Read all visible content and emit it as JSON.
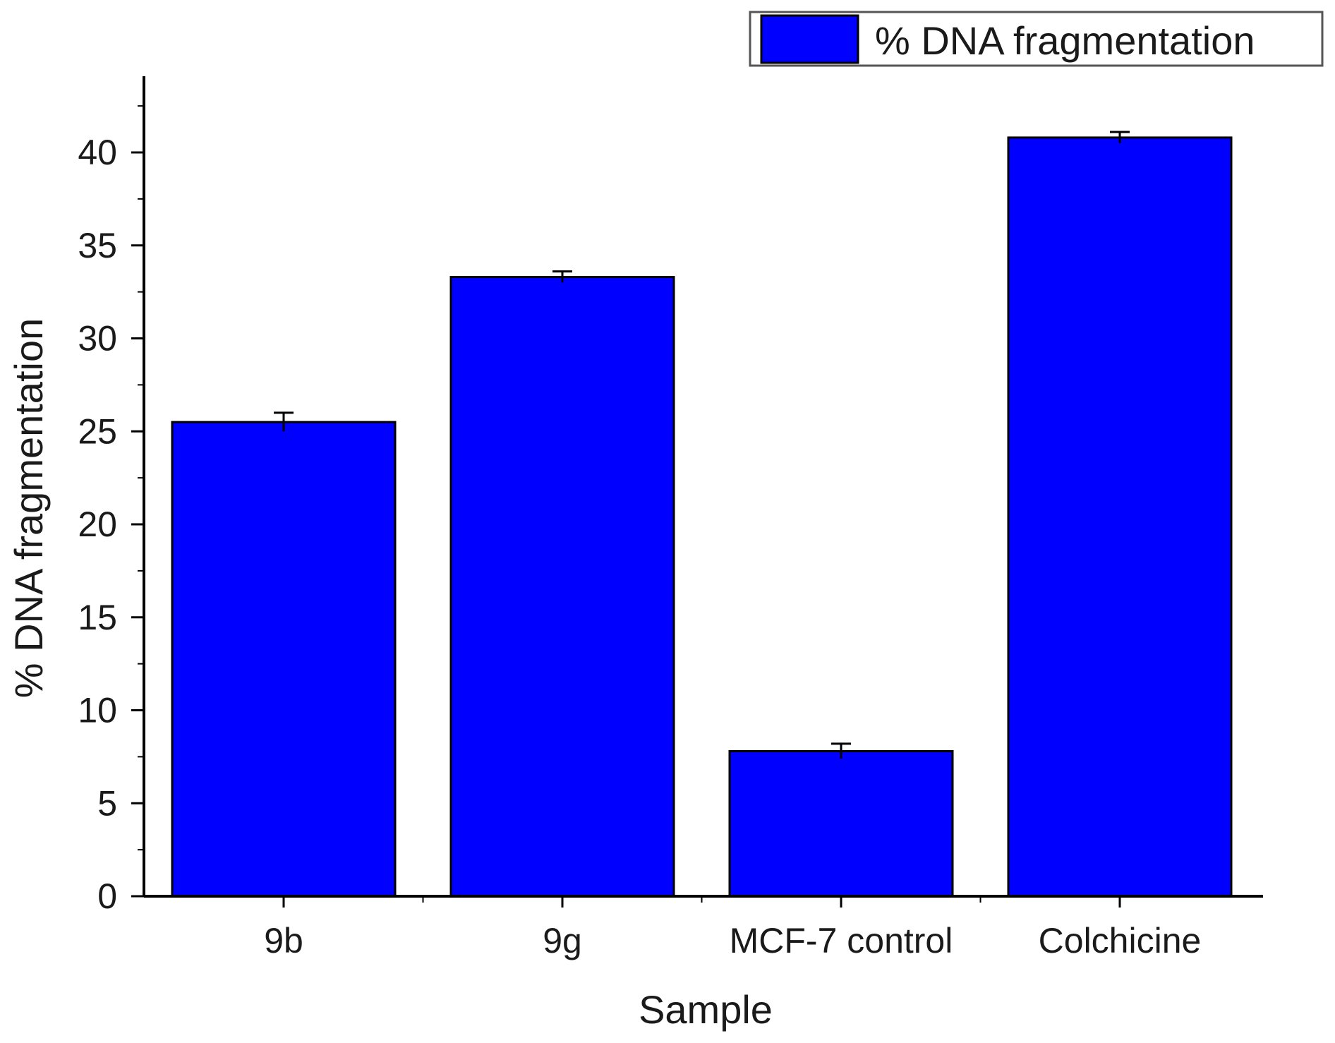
{
  "chart_data": {
    "type": "bar",
    "title": "",
    "xlabel": "Sample",
    "ylabel": "% DNA fragmentation",
    "categories": [
      "9b",
      "9g",
      "MCF-7 control",
      "Colchicine"
    ],
    "series": [
      {
        "name": "% DNA fragmentation",
        "values": [
          25.5,
          33.3,
          7.8,
          40.8
        ],
        "errors": [
          0.5,
          0.3,
          0.4,
          0.3
        ],
        "color": "#0000ff"
      }
    ],
    "ylim": [
      0,
      44
    ],
    "yticks": [
      "0",
      "5",
      "10",
      "15",
      "20",
      "25",
      "30",
      "35",
      "40"
    ],
    "grid": false,
    "legend": {
      "position": "top-right"
    }
  }
}
